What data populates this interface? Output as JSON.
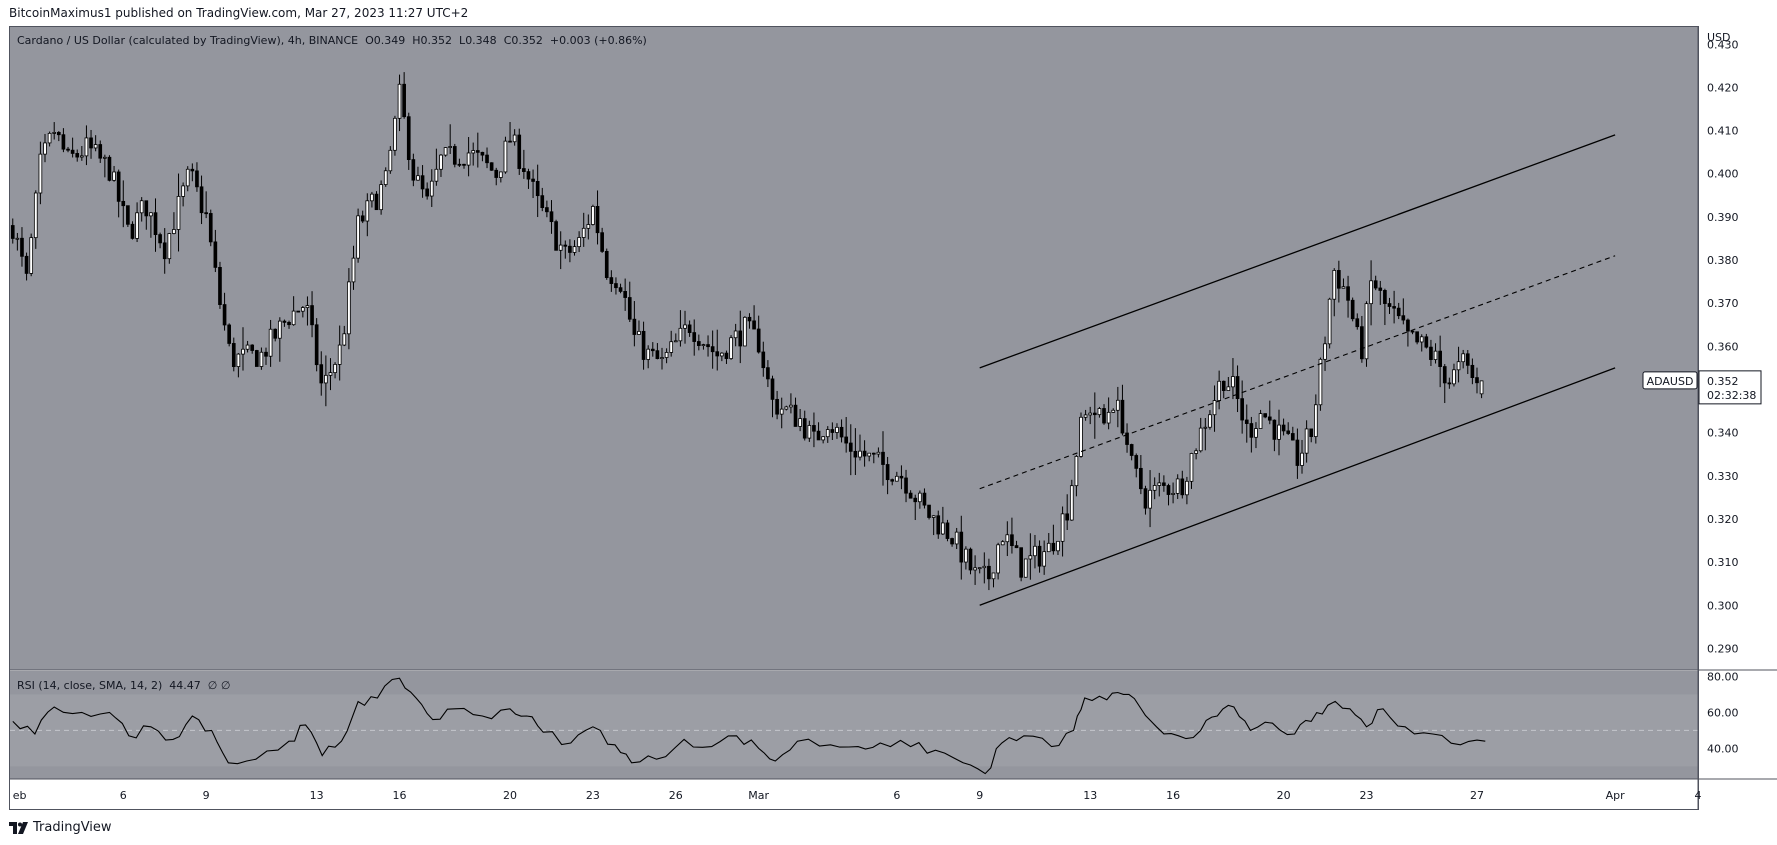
{
  "publisher": "BitcoinMaximus1 published on TradingView.com, Mar 27, 2023 11:27 UTC+2",
  "symbol": {
    "name": "Cardano / US Dollar (calculated by TradingView), 4h, BINANCE",
    "o_label": "O",
    "o": "0.349",
    "h_label": "H",
    "h": "0.352",
    "l_label": "L",
    "l": "0.348",
    "c_label": "C",
    "c": "0.352",
    "change": "+0.003 (+0.86%)"
  },
  "rsi_label": "RSI (14, close, SMA, 14, 2)",
  "rsi_value": "44.47",
  "rsi_na": "∅ ∅",
  "price_tag": {
    "ticker": "ADAUSD",
    "price": "0.352",
    "countdown": "02:32:38"
  },
  "currency": "USD",
  "brand": "TradingView",
  "colors": {
    "background": "#94969e",
    "rsi_band": "#9c9ea5",
    "line": "#000000",
    "text": "#131722"
  },
  "chart_data": {
    "type": "candlestick",
    "timeframe": "4h",
    "y_ticks": [
      "0.430",
      "0.420",
      "0.410",
      "0.400",
      "0.390",
      "0.380",
      "0.370",
      "0.360",
      "0.350",
      "0.340",
      "0.330",
      "0.320",
      "0.310",
      "0.300",
      "0.290"
    ],
    "ylim": [
      0.285,
      0.434
    ],
    "x_ticks": [
      "eb",
      "6",
      "9",
      "13",
      "16",
      "20",
      "23",
      "26",
      "Mar",
      "6",
      "9",
      "13",
      "16",
      "20",
      "23",
      "27",
      "Apr",
      "4"
    ],
    "x_tick_days": [
      2,
      6,
      9,
      13,
      16,
      20,
      23,
      26,
      29,
      34,
      37,
      41,
      44,
      48,
      51,
      55,
      60,
      63
    ],
    "xlim_days": [
      1.9,
      63.0
    ],
    "price_path": [
      [
        2.0,
        0.388
      ],
      [
        2.5,
        0.375
      ],
      [
        3.0,
        0.402
      ],
      [
        3.5,
        0.41
      ],
      [
        4.0,
        0.403
      ],
      [
        4.7,
        0.406
      ],
      [
        5.5,
        0.401
      ],
      [
        6.2,
        0.386
      ],
      [
        6.8,
        0.393
      ],
      [
        7.5,
        0.383
      ],
      [
        8.4,
        0.4
      ],
      [
        9.0,
        0.39
      ],
      [
        9.5,
        0.37
      ],
      [
        9.9,
        0.357
      ],
      [
        11.0,
        0.358
      ],
      [
        12.0,
        0.367
      ],
      [
        12.6,
        0.37
      ],
      [
        13.2,
        0.35
      ],
      [
        13.9,
        0.36
      ],
      [
        14.5,
        0.388
      ],
      [
        15.5,
        0.398
      ],
      [
        16.0,
        0.418
      ],
      [
        16.5,
        0.4
      ],
      [
        17.0,
        0.393
      ],
      [
        17.5,
        0.403
      ],
      [
        18.5,
        0.405
      ],
      [
        19.5,
        0.4
      ],
      [
        20.0,
        0.408
      ],
      [
        20.5,
        0.402
      ],
      [
        21.0,
        0.393
      ],
      [
        22.0,
        0.381
      ],
      [
        22.5,
        0.384
      ],
      [
        23.0,
        0.392
      ],
      [
        23.5,
        0.378
      ],
      [
        24.0,
        0.375
      ],
      [
        24.5,
        0.362
      ],
      [
        25.0,
        0.358
      ],
      [
        25.5,
        0.356
      ],
      [
        26.5,
        0.365
      ],
      [
        27.5,
        0.358
      ],
      [
        28.5,
        0.364
      ],
      [
        29.0,
        0.361
      ],
      [
        29.5,
        0.347
      ],
      [
        30.5,
        0.343
      ],
      [
        31.0,
        0.338
      ],
      [
        31.5,
        0.343
      ],
      [
        32.2,
        0.337
      ],
      [
        33.3,
        0.333
      ],
      [
        34.2,
        0.33
      ],
      [
        35.0,
        0.322
      ],
      [
        36.0,
        0.316
      ],
      [
        36.8,
        0.307
      ],
      [
        37.3,
        0.306
      ],
      [
        37.8,
        0.317
      ],
      [
        38.5,
        0.309
      ],
      [
        39.5,
        0.313
      ],
      [
        40.2,
        0.323
      ],
      [
        40.6,
        0.34
      ],
      [
        41.0,
        0.346
      ],
      [
        41.5,
        0.342
      ],
      [
        41.8,
        0.348
      ],
      [
        42.2,
        0.342
      ],
      [
        42.5,
        0.332
      ],
      [
        43.0,
        0.325
      ],
      [
        43.5,
        0.327
      ],
      [
        44.3,
        0.328
      ],
      [
        44.8,
        0.337
      ],
      [
        45.3,
        0.345
      ],
      [
        45.8,
        0.353
      ],
      [
        46.2,
        0.35
      ],
      [
        46.7,
        0.34
      ],
      [
        47.2,
        0.345
      ],
      [
        47.8,
        0.34
      ],
      [
        48.5,
        0.334
      ],
      [
        49.0,
        0.34
      ],
      [
        49.5,
        0.362
      ],
      [
        49.8,
        0.378
      ],
      [
        50.3,
        0.372
      ],
      [
        50.8,
        0.358
      ],
      [
        51.2,
        0.376
      ],
      [
        51.6,
        0.37
      ],
      [
        52.0,
        0.367
      ],
      [
        52.5,
        0.362
      ],
      [
        53.0,
        0.36
      ],
      [
        53.5,
        0.357
      ],
      [
        54.0,
        0.352
      ],
      [
        54.5,
        0.356
      ],
      [
        55.1,
        0.35
      ],
      [
        55.3,
        0.352
      ]
    ],
    "ohlc_last": {
      "o": 0.349,
      "h": 0.352,
      "l": 0.348,
      "c": 0.352
    },
    "channel": {
      "upper": [
        [
          37.0,
          0.355
        ],
        [
          60.0,
          0.409
        ]
      ],
      "lower": [
        [
          37.0,
          0.3
        ],
        [
          60.0,
          0.355
        ]
      ],
      "mid_dashed": [
        [
          37.0,
          0.327
        ],
        [
          60.0,
          0.381
        ]
      ]
    },
    "rsi": {
      "y_ticks": [
        "80.00",
        "60.00",
        "40.00"
      ],
      "ylim": [
        23,
        83
      ],
      "band": [
        30,
        70
      ],
      "midline": 50,
      "values": [
        [
          2.0,
          55
        ],
        [
          2.8,
          48
        ],
        [
          3.5,
          63
        ],
        [
          4.5,
          60
        ],
        [
          5.5,
          60
        ],
        [
          6.2,
          47
        ],
        [
          7.0,
          52
        ],
        [
          7.8,
          45
        ],
        [
          8.5,
          58
        ],
        [
          9.2,
          50
        ],
        [
          9.8,
          32
        ],
        [
          10.8,
          34
        ],
        [
          12.0,
          44
        ],
        [
          12.6,
          53
        ],
        [
          13.2,
          36
        ],
        [
          13.9,
          44
        ],
        [
          14.5,
          66
        ],
        [
          15.2,
          68
        ],
        [
          16.0,
          79
        ],
        [
          16.6,
          68
        ],
        [
          17.2,
          56
        ],
        [
          18.0,
          62
        ],
        [
          19.0,
          58
        ],
        [
          20.0,
          62
        ],
        [
          20.6,
          58
        ],
        [
          21.2,
          49
        ],
        [
          22.2,
          43
        ],
        [
          23.0,
          52
        ],
        [
          23.8,
          42
        ],
        [
          24.4,
          32
        ],
        [
          25.3,
          34
        ],
        [
          26.3,
          45
        ],
        [
          27.3,
          41
        ],
        [
          28.2,
          47
        ],
        [
          29.0,
          40
        ],
        [
          29.6,
          33
        ],
        [
          30.4,
          44
        ],
        [
          31.6,
          42
        ],
        [
          32.6,
          41
        ],
        [
          33.4,
          43
        ],
        [
          34.5,
          41
        ],
        [
          35.4,
          39
        ],
        [
          36.4,
          32
        ],
        [
          37.2,
          26
        ],
        [
          37.8,
          43
        ],
        [
          38.6,
          47
        ],
        [
          39.6,
          41
        ],
        [
          40.4,
          50
        ],
        [
          40.8,
          68
        ],
        [
          41.6,
          67
        ],
        [
          42.2,
          70
        ],
        [
          42.8,
          63
        ],
        [
          43.4,
          52
        ],
        [
          44.2,
          47
        ],
        [
          45.0,
          50
        ],
        [
          45.6,
          58
        ],
        [
          46.2,
          63
        ],
        [
          46.8,
          50
        ],
        [
          47.6,
          54
        ],
        [
          48.4,
          48
        ],
        [
          49.0,
          55
        ],
        [
          49.6,
          64
        ],
        [
          50.4,
          62
        ],
        [
          51.0,
          52
        ],
        [
          51.6,
          62
        ],
        [
          52.4,
          52
        ],
        [
          53.4,
          48
        ],
        [
          54.4,
          42
        ],
        [
          55.3,
          44
        ]
      ]
    }
  }
}
